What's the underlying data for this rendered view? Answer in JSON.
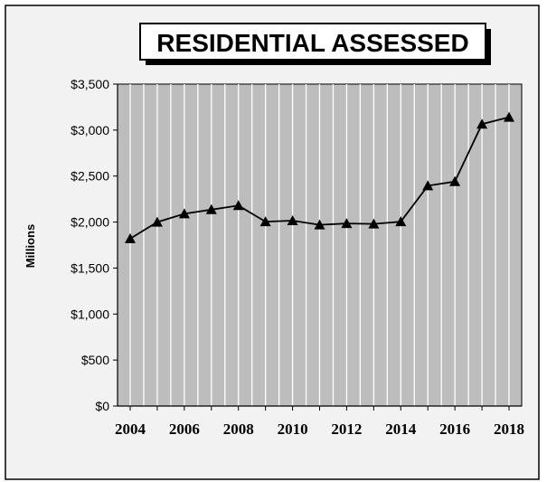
{
  "colors": {
    "frame_background": "#f2f2f2",
    "plot_background": "#bdbdbd",
    "gridline": "#ffffff",
    "line": "#000000",
    "marker": "#000000",
    "title_box": "#ffffff",
    "title_shadow": "#000000"
  },
  "chart_data": {
    "type": "line",
    "title": "RESIDENTIAL ASSESSED",
    "ylabel": "Millions",
    "xlabel": "",
    "x": [
      2004,
      2005,
      2006,
      2007,
      2008,
      2009,
      2010,
      2011,
      2012,
      2013,
      2014,
      2015,
      2016,
      2017,
      2018
    ],
    "series": [
      {
        "values": [
          1820,
          2000,
          2090,
          2135,
          2180,
          2005,
          2015,
          1970,
          1985,
          1980,
          2005,
          2395,
          2440,
          3065,
          3140
        ],
        "marker": "triangle"
      }
    ],
    "xlim": [
      2004,
      2018
    ],
    "ylim": [
      0,
      3500
    ],
    "yticks": [
      0,
      500,
      1000,
      1500,
      2000,
      2500,
      3000,
      3500
    ],
    "ytick_labels": [
      "$0",
      "$500",
      "$1,000",
      "$1,500",
      "$2,000",
      "$2,500",
      "$3,000",
      "$3,500"
    ],
    "xtick_labels": [
      "2004",
      "2006",
      "2008",
      "2010",
      "2012",
      "2014",
      "2016",
      "2018"
    ],
    "xtick_values": [
      2004,
      2006,
      2008,
      2010,
      2012,
      2014,
      2016,
      2018
    ],
    "grid": "vertical",
    "legend": "none"
  }
}
